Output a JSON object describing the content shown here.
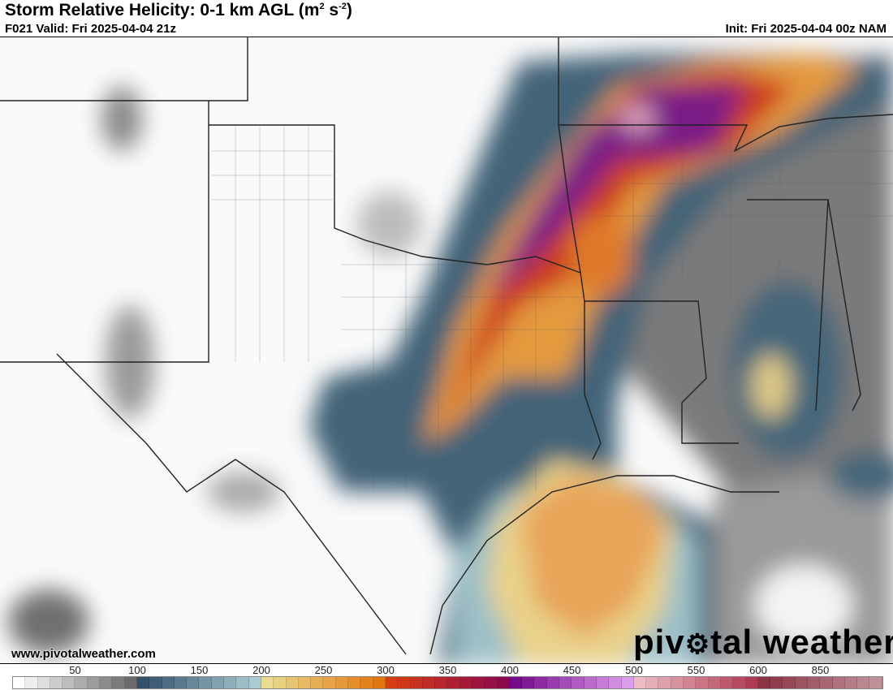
{
  "header": {
    "title": "Storm Relative Helicity: 0-1 km AGL (m",
    "title_sup1": "2",
    "title_mid": " s",
    "title_sup2": "-2",
    "title_end": ")",
    "valid": "F021 Valid: Fri 2025-04-04 21z",
    "init": "Init: Fri 2025-04-04 00z NAM"
  },
  "footer": {
    "website": "www.pivotalweather.com",
    "logo_text": "pivotal weather"
  },
  "colorbar": {
    "ticks": [
      {
        "label": "50",
        "index": 5
      },
      {
        "label": "100",
        "index": 10
      },
      {
        "label": "150",
        "index": 15
      },
      {
        "label": "200",
        "index": 20
      },
      {
        "label": "250",
        "index": 25
      },
      {
        "label": "300",
        "index": 30
      },
      {
        "label": "350",
        "index": 35
      },
      {
        "label": "400",
        "index": 40
      },
      {
        "label": "450",
        "index": 45
      },
      {
        "label": "500",
        "index": 50
      },
      {
        "label": "550",
        "index": 55
      },
      {
        "label": "600",
        "index": 60
      },
      {
        "label": "850",
        "index": 65
      }
    ],
    "swatch_count": 70,
    "stops": [
      {
        "i": 0,
        "c": "#ffffff"
      },
      {
        "i": 9,
        "c": "#6a6a6a"
      },
      {
        "i": 10,
        "c": "#34506a"
      },
      {
        "i": 19,
        "c": "#a8ccd2"
      },
      {
        "i": 20,
        "c": "#eadc8e"
      },
      {
        "i": 29,
        "c": "#e2760e"
      },
      {
        "i": 30,
        "c": "#d83c12"
      },
      {
        "i": 39,
        "c": "#8c0a4c"
      },
      {
        "i": 40,
        "c": "#760a8c"
      },
      {
        "i": 49,
        "c": "#dc9cec"
      },
      {
        "i": 50,
        "c": "#ecbcc4"
      },
      {
        "i": 59,
        "c": "#b03c54"
      },
      {
        "i": 60,
        "c": "#8a3446"
      },
      {
        "i": 69,
        "c": "#c09098"
      }
    ]
  },
  "map_colors": {
    "land_low": "#ffffff",
    "gray": "#8a8a8a",
    "blue": "#3e6078",
    "light_blue": "#9cc0c8",
    "yellow": "#e8d88a",
    "orange": "#e89a3a",
    "red": "#c8281e",
    "purple": "#7a1a8e",
    "pink": "#e0a8c0"
  }
}
